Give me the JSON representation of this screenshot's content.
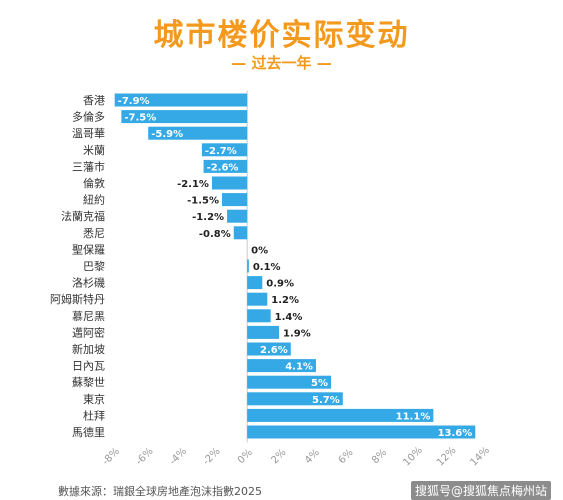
{
  "header": {
    "title": "城市楼价实际变动",
    "subtitle": "— 过去一年 —"
  },
  "footer": {
    "source": "數據來源：瑞銀全球房地產泡沫指數2025",
    "watermark": "搜狐号@搜狐焦点梅州站"
  },
  "colors": {
    "bar": "#35a9e6",
    "title": "#f39a1e",
    "axis": "#cccccc"
  },
  "chart_data": {
    "type": "bar",
    "orientation": "horizontal",
    "categories": [
      "香港",
      "多倫多",
      "溫哥華",
      "米蘭",
      "三藩市",
      "倫敦",
      "紐約",
      "法蘭克福",
      "悉尼",
      "聖保羅",
      "巴黎",
      "洛杉磯",
      "阿姆斯特丹",
      "慕尼黑",
      "邁阿密",
      "新加坡",
      "日內瓦",
      "蘇黎世",
      "東京",
      "杜拜",
      "馬德里"
    ],
    "values": [
      -7.9,
      -7.5,
      -5.9,
      -2.7,
      -2.6,
      -2.1,
      -1.5,
      -1.2,
      -0.8,
      0,
      0.1,
      0.9,
      1.2,
      1.4,
      1.9,
      2.6,
      4.1,
      5,
      5.7,
      11.1,
      13.6
    ],
    "data_labels": [
      "-7.9%",
      "-7.5%",
      "-5.9%",
      "-2.7%",
      "-2.6%",
      "-2.1%",
      "-1.5%",
      "-1.2%",
      "-0.8%",
      "0%",
      "0.1%",
      "0.9%",
      "1.2%",
      "1.4%",
      "1.9%",
      "2.6%",
      "4.1%",
      "5%",
      "5.7%",
      "11.1%",
      "13.6%"
    ],
    "xlim": [
      -8,
      14
    ],
    "x_ticks": [
      -8,
      -6,
      -4,
      -2,
      0,
      2,
      4,
      6,
      8,
      10,
      12,
      14
    ],
    "x_tick_labels": [
      "-8%",
      "-6%",
      "-4%",
      "-2%",
      "0%",
      "2%",
      "4%",
      "6%",
      "8%",
      "10%",
      "12%",
      "14%"
    ],
    "title": "城市楼价实际变动",
    "subtitle": "— 过去一年 —",
    "grid": false
  }
}
